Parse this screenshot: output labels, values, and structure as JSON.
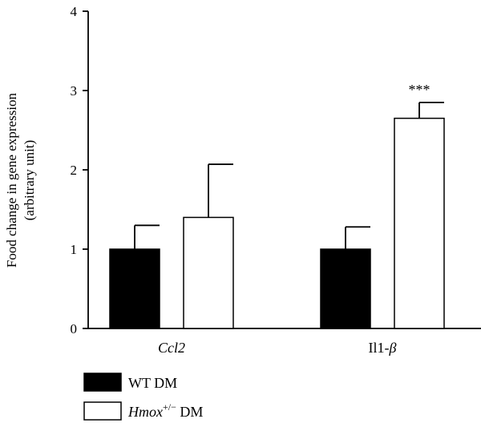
{
  "chart_data": {
    "type": "bar",
    "ylabel_line1": "Food change in gene expression",
    "ylabel_line2": "(arbitrary unit)",
    "ylim": [
      0,
      4
    ],
    "yticks": [
      "0",
      "1",
      "2",
      "3",
      "4"
    ],
    "categories": [
      {
        "label": "Ccl2",
        "style": "italic"
      },
      {
        "label": "Il1-",
        "greek": "β",
        "style": "normal"
      }
    ],
    "series": [
      {
        "name": "WT DM",
        "fill": "#000000",
        "values": [
          1.0,
          1.0
        ],
        "errors": [
          0.3,
          0.28
        ]
      },
      {
        "name_italic": "Hmox",
        "name_sup": "+/−",
        "name_suffix": " DM",
        "fill": "#ffffff",
        "values": [
          1.4,
          2.65
        ],
        "errors": [
          0.67,
          0.2
        ]
      }
    ],
    "annotations": [
      {
        "category_index": 1,
        "series_index": 1,
        "text": "***"
      }
    ],
    "grid": false,
    "legend_position": "bottom-left"
  }
}
